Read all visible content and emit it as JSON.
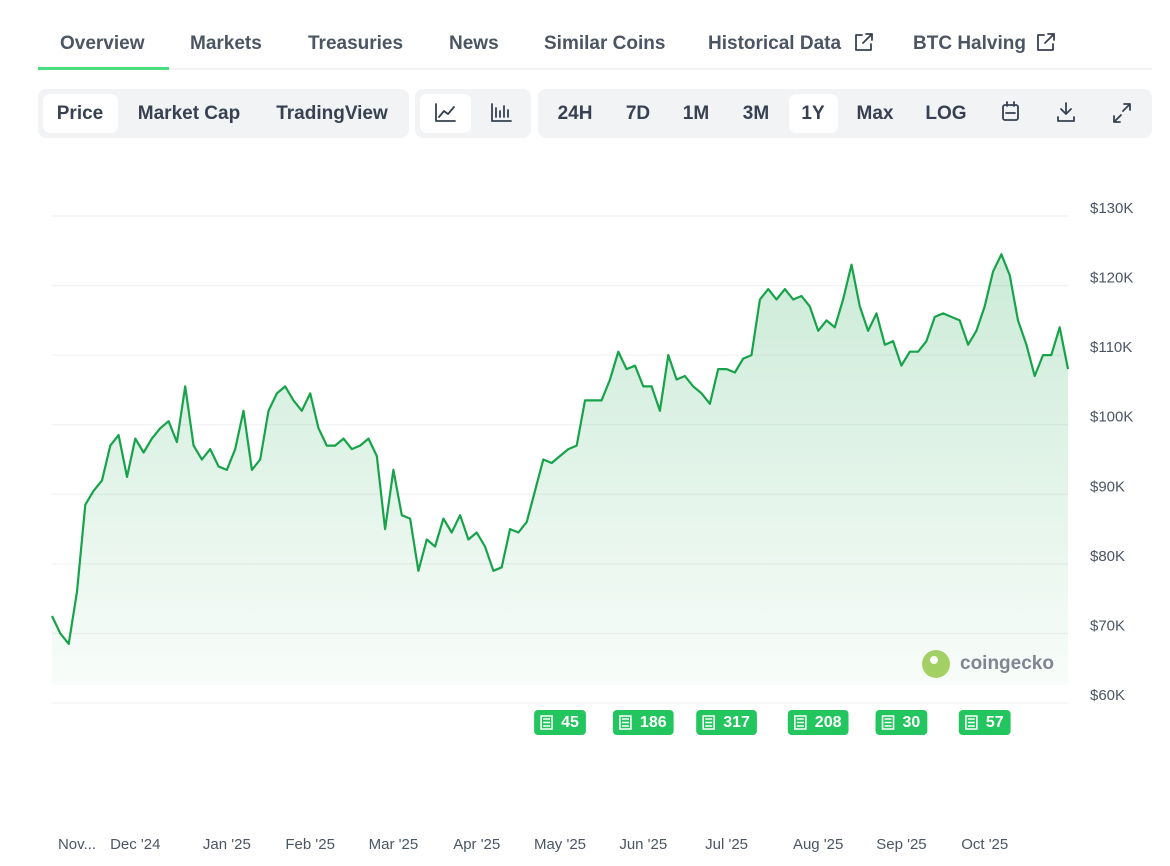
{
  "tabs": [
    "Overview",
    "Markets",
    "Treasuries",
    "News",
    "Similar Coins",
    "Historical Data",
    "BTC Halving"
  ],
  "chart_views": [
    "Price",
    "Market Cap",
    "TradingView"
  ],
  "ranges": [
    "24H",
    "7D",
    "1M",
    "3M",
    "1Y",
    "Max",
    "LOG"
  ],
  "watermark": "coingecko",
  "news_counts": [
    45,
    186,
    317,
    208,
    30,
    57
  ],
  "chart_data": {
    "type": "line",
    "color": "#16a34a",
    "categories": [
      null,
      null,
      null,
      "Nov...",
      null,
      null,
      null,
      null,
      null,
      null,
      "Dec '24",
      null,
      null,
      null,
      null,
      null,
      null,
      null,
      null,
      null,
      null,
      "Jan '25",
      null,
      null,
      null,
      null,
      null,
      null,
      null,
      null,
      null,
      "Feb '25",
      null,
      null,
      null,
      null,
      null,
      null,
      null,
      null,
      null,
      "Mar '25",
      null,
      null,
      null,
      null,
      null,
      null,
      null,
      null,
      null,
      "Apr '25",
      null,
      null,
      null,
      null,
      null,
      null,
      null,
      null,
      null,
      "May '25",
      null,
      null,
      null,
      null,
      null,
      null,
      null,
      null,
      null,
      "Jun '25",
      null,
      null,
      null,
      null,
      null,
      null,
      null,
      null,
      null,
      "Jul '25",
      null,
      null,
      null,
      null,
      null,
      null,
      null,
      null,
      null,
      null,
      "Aug '25",
      null,
      null,
      null,
      null,
      null,
      null,
      null,
      null,
      null,
      "Sep '25",
      null,
      null,
      null,
      null,
      null,
      null,
      null,
      null,
      null,
      "Oct '25",
      null,
      null,
      null,
      null,
      null,
      null,
      null,
      null,
      null,
      null
    ],
    "values": [
      72500,
      70000,
      68500,
      76000,
      88500,
      90500,
      92000,
      97000,
      98500,
      92500,
      98000,
      96000,
      98000,
      99500,
      100500,
      97500,
      105500,
      97000,
      95000,
      96500,
      94000,
      93500,
      96500,
      102000,
      93500,
      95000,
      102000,
      104500,
      105500,
      103500,
      102000,
      104500,
      99500,
      97000,
      97000,
      98000,
      96500,
      97000,
      98000,
      95500,
      85000,
      93500,
      87000,
      86500,
      79000,
      83500,
      82500,
      86500,
      84500,
      87000,
      83500,
      84500,
      82500,
      79000,
      79500,
      85000,
      84500,
      86000,
      90500,
      95000,
      94500,
      95500,
      96500,
      97000,
      103500,
      103500,
      103500,
      106500,
      110500,
      108000,
      108500,
      105500,
      105500,
      102000,
      110000,
      106500,
      107000,
      105500,
      104500,
      103000,
      108000,
      108000,
      107500,
      109500,
      110000,
      118000,
      119500,
      118000,
      119500,
      118000,
      118500,
      117000,
      113500,
      115000,
      114000,
      118000,
      123000,
      117000,
      113500,
      116000,
      111500,
      112000,
      108500,
      110500,
      110500,
      112000,
      115500,
      116000,
      115500,
      115000,
      111500,
      113500,
      117000,
      122000,
      124500,
      121500,
      115000,
      111500,
      107000,
      110000,
      110000,
      114000,
      108000
    ],
    "ylim": [
      60000,
      130000
    ],
    "yticks": [
      {
        "value": 60000,
        "label": "$60K"
      },
      {
        "value": 70000,
        "label": "$70K"
      },
      {
        "value": 80000,
        "label": "$80K"
      },
      {
        "value": 90000,
        "label": "$90K"
      },
      {
        "value": 100000,
        "label": "$100K"
      },
      {
        "value": 110000,
        "label": "$110K"
      },
      {
        "value": 120000,
        "label": "$120K"
      },
      {
        "value": 130000,
        "label": "$130K"
      }
    ],
    "grid": true
  }
}
